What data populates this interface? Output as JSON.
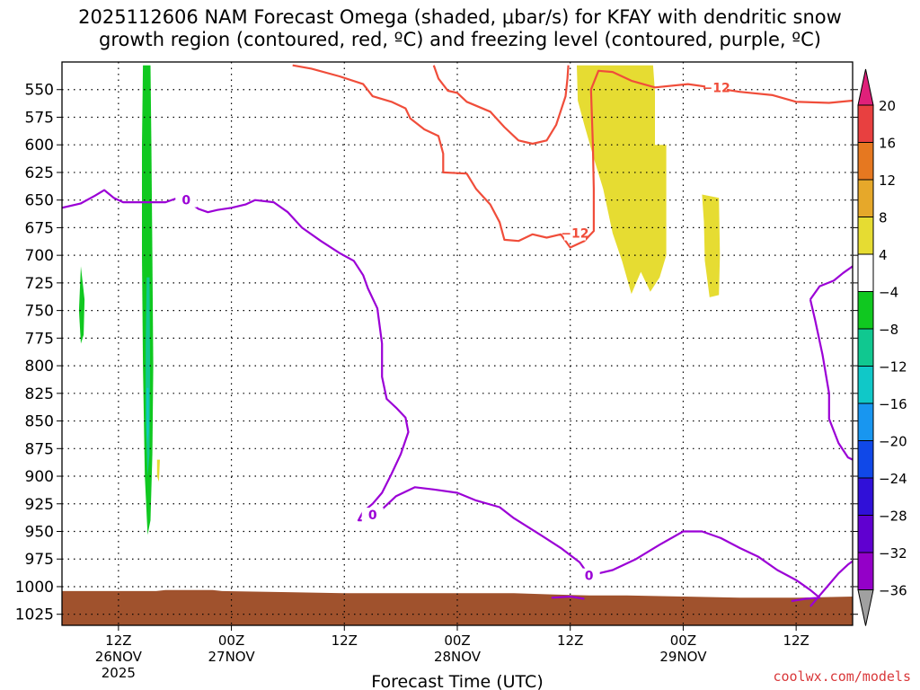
{
  "title_line1": "2025112606 NAM Forecast Omega (shaded, μbar/s) for KFAY with dendritic snow",
  "title_line2": "growth region (contoured, red, ºC) and freezing level (contoured, purple, ºC)",
  "credit": "coolwx.com/models",
  "chart_data": {
    "type": "heatmap",
    "xlabel": "Forecast Time (UTC)",
    "x_range_hours": [
      0,
      84
    ],
    "x_ticks": [
      {
        "hour": 6,
        "label": "12Z",
        "date": "26NOV",
        "year": "2025"
      },
      {
        "hour": 18,
        "label": "00Z",
        "date": "27NOV"
      },
      {
        "hour": 30,
        "label": "12Z"
      },
      {
        "hour": 42,
        "label": "00Z",
        "date": "28NOV"
      },
      {
        "hour": 54,
        "label": "12Z"
      },
      {
        "hour": 66,
        "label": "00Z",
        "date": "29NOV"
      },
      {
        "hour": 78,
        "label": "12Z"
      }
    ],
    "y_axis": "pressure (mb), inverted",
    "y_range": [
      1035,
      525
    ],
    "y_ticks": [
      550,
      575,
      600,
      625,
      650,
      675,
      700,
      725,
      750,
      775,
      800,
      825,
      850,
      875,
      900,
      925,
      950,
      975,
      1000,
      1025
    ],
    "grid": true,
    "colorbar": {
      "levels": [
        -36,
        -32,
        -28,
        -24,
        -20,
        -16,
        -12,
        -8,
        -4,
        4,
        8,
        12,
        16,
        20
      ],
      "colors": [
        "#a0a0a0",
        "#9400c8",
        "#6000d0",
        "#3010d8",
        "#1048e8",
        "#1896f0",
        "#10c8c8",
        "#10c890",
        "#10c820",
        "#ffffff",
        "#e6dc32",
        "#e6a82a",
        "#e67820",
        "#e84040",
        "#e0207a"
      ]
    },
    "omega_regions": [
      {
        "value_range": [
          -8,
          -4
        ],
        "color": "#10c820",
        "points": [
          [
            8.6,
            528
          ],
          [
            9.4,
            528
          ],
          [
            9.5,
            600
          ],
          [
            9.6,
            700
          ],
          [
            9.7,
            800
          ],
          [
            9.6,
            880
          ],
          [
            9.4,
            940
          ],
          [
            9.1,
            953
          ],
          [
            8.8,
            900
          ],
          [
            8.6,
            800
          ],
          [
            8.5,
            700
          ],
          [
            8.5,
            600
          ]
        ]
      },
      {
        "value_range": [
          -8,
          -4
        ],
        "color": "#10c820",
        "points": [
          [
            2.0,
            710
          ],
          [
            2.4,
            740
          ],
          [
            2.3,
            772
          ],
          [
            2.0,
            780
          ],
          [
            1.8,
            750
          ]
        ]
      },
      {
        "value_range": [
          -12,
          -8
        ],
        "color": "#10c890",
        "points": [
          [
            9.0,
            720
          ],
          [
            9.3,
            720
          ],
          [
            9.35,
            800
          ],
          [
            9.3,
            880
          ],
          [
            9.1,
            900
          ],
          [
            8.9,
            850
          ],
          [
            8.9,
            780
          ]
        ]
      },
      {
        "value_range": [
          -16,
          -12
        ],
        "color": "#10c8c8",
        "points": [
          [
            9.0,
            820
          ],
          [
            9.2,
            820
          ],
          [
            9.2,
            860
          ],
          [
            9.05,
            870
          ]
        ]
      },
      {
        "value_range": [
          4,
          8
        ],
        "color": "#e6dc32",
        "points": [
          [
            10.1,
            885
          ],
          [
            10.4,
            885
          ],
          [
            10.3,
            905
          ],
          [
            10.1,
            900
          ]
        ]
      },
      {
        "value_range": [
          4,
          8
        ],
        "color": "#e6dc32",
        "points": [
          [
            51.5,
            528
          ],
          [
            62.8,
            528
          ],
          [
            63.0,
            552
          ],
          [
            63.0,
            600
          ],
          [
            64.2,
            600
          ],
          [
            64.2,
            668
          ],
          [
            64.2,
            700
          ],
          [
            63.5,
            720
          ],
          [
            62.5,
            733
          ],
          [
            61.5,
            715
          ],
          [
            60.5,
            735
          ],
          [
            59.5,
            705
          ],
          [
            58.5,
            680
          ],
          [
            57.5,
            640
          ],
          [
            56.5,
            612
          ],
          [
            55.5,
            582
          ],
          [
            54.8,
            560
          ],
          [
            54.7,
            528
          ]
        ]
      },
      {
        "value_range": [
          4,
          8
        ],
        "color": "#e6dc32",
        "points": [
          [
            68.0,
            645
          ],
          [
            69.8,
            648
          ],
          [
            69.9,
            700
          ],
          [
            69.8,
            736
          ],
          [
            68.8,
            738
          ],
          [
            68.3,
            705
          ],
          [
            68.2,
            670
          ]
        ]
      }
    ],
    "terrain": {
      "color": "#a0522d",
      "top_mb": [
        [
          0,
          1004
        ],
        [
          10,
          1004
        ],
        [
          11,
          1003
        ],
        [
          16,
          1003
        ],
        [
          17,
          1004
        ],
        [
          24,
          1005
        ],
        [
          30,
          1006
        ],
        [
          36,
          1006
        ],
        [
          48,
          1006
        ],
        [
          52,
          1007
        ],
        [
          56,
          1008
        ],
        [
          60,
          1008
        ],
        [
          66,
          1009
        ],
        [
          72,
          1010
        ],
        [
          78,
          1010
        ],
        [
          84,
          1009
        ]
      ]
    },
    "contours": [
      {
        "name": "-12",
        "color": "#f04d3a",
        "label_at": [
          [
            69.5,
            548
          ],
          [
            54.5,
            680
          ]
        ],
        "points": [
          [
            24.5,
            528
          ],
          [
            26.5,
            531
          ],
          [
            29.5,
            538
          ],
          [
            32.0,
            545
          ],
          [
            33.0,
            556
          ],
          [
            35.0,
            561
          ],
          [
            36.5,
            567
          ],
          [
            37.0,
            576
          ],
          [
            38.5,
            586
          ],
          [
            40.0,
            592
          ],
          [
            40.5,
            608
          ],
          [
            40.5,
            625
          ],
          [
            43.0,
            626
          ],
          [
            44.0,
            640
          ],
          [
            45.5,
            654
          ],
          [
            46.5,
            670
          ],
          [
            47.0,
            686
          ],
          [
            48.5,
            687
          ],
          [
            50.0,
            681
          ],
          [
            51.5,
            684
          ],
          [
            53.0,
            681
          ],
          [
            54.0,
            693
          ],
          [
            55.5,
            687
          ],
          [
            56.5,
            678
          ],
          [
            56.5,
            640
          ],
          [
            56.4,
            600
          ],
          [
            56.2,
            550
          ],
          [
            57.0,
            533
          ],
          [
            58.5,
            534
          ],
          [
            60.5,
            542
          ],
          [
            63.0,
            548
          ],
          [
            66.5,
            545
          ],
          [
            69.0,
            548
          ],
          [
            72.0,
            552
          ],
          [
            75.5,
            555
          ],
          [
            78.0,
            561
          ],
          [
            81.5,
            562
          ],
          [
            84.0,
            560
          ]
        ]
      },
      {
        "name": "-12",
        "color": "#f04d3a",
        "points": [
          [
            39.5,
            528
          ],
          [
            40.0,
            540
          ],
          [
            41.0,
            551
          ],
          [
            42.0,
            553
          ],
          [
            43.0,
            561
          ],
          [
            45.5,
            570
          ],
          [
            47.0,
            584
          ],
          [
            48.5,
            596
          ],
          [
            50.0,
            599
          ],
          [
            51.5,
            596
          ],
          [
            52.5,
            582
          ],
          [
            53.5,
            556
          ],
          [
            53.7,
            540
          ],
          [
            53.8,
            528
          ]
        ]
      },
      {
        "name": "0",
        "color": "#9b00d6",
        "label_at": [
          [
            13.2,
            650
          ],
          [
            33.0,
            935
          ],
          [
            56.0,
            990
          ]
        ],
        "points": [
          [
            0,
            657
          ],
          [
            2.0,
            653
          ],
          [
            3.5,
            646
          ],
          [
            4.5,
            641
          ],
          [
            5.5,
            648
          ],
          [
            6.5,
            652
          ],
          [
            8.0,
            652
          ],
          [
            9.5,
            652
          ],
          [
            11.0,
            652
          ],
          [
            12.0,
            649
          ],
          [
            13.2,
            650
          ],
          [
            14.5,
            658
          ],
          [
            15.5,
            661
          ],
          [
            16.5,
            659
          ],
          [
            18.0,
            657
          ],
          [
            19.5,
            654
          ],
          [
            20.5,
            650
          ],
          [
            22.5,
            652
          ],
          [
            24.0,
            661
          ],
          [
            25.5,
            675
          ],
          [
            27.5,
            687
          ],
          [
            29.5,
            698
          ],
          [
            31.0,
            705
          ],
          [
            32.0,
            718
          ],
          [
            32.5,
            730
          ],
          [
            33.5,
            748
          ],
          [
            34.0,
            780
          ],
          [
            34.0,
            810
          ],
          [
            34.5,
            830
          ],
          [
            35.5,
            838
          ],
          [
            36.5,
            847
          ],
          [
            36.8,
            860
          ],
          [
            36.0,
            880
          ],
          [
            35.0,
            898
          ],
          [
            34.0,
            915
          ],
          [
            33.0,
            925
          ],
          [
            32.0,
            932
          ],
          [
            31.5,
            940
          ],
          [
            32.5,
            940
          ],
          [
            34.0,
            930
          ],
          [
            35.5,
            918
          ],
          [
            37.5,
            910
          ],
          [
            39.5,
            912
          ],
          [
            42.0,
            915
          ],
          [
            44.0,
            922
          ],
          [
            46.5,
            928
          ],
          [
            48.0,
            938
          ],
          [
            49.5,
            946
          ],
          [
            51.0,
            954
          ],
          [
            53.0,
            965
          ],
          [
            55.0,
            978
          ],
          [
            56.0,
            990
          ],
          [
            58.5,
            985
          ],
          [
            61.0,
            975
          ],
          [
            63.5,
            962
          ],
          [
            66.0,
            950
          ],
          [
            68.0,
            950
          ],
          [
            70.0,
            956
          ],
          [
            72.0,
            965
          ],
          [
            74.0,
            973
          ],
          [
            76.0,
            985
          ],
          [
            78.0,
            994
          ],
          [
            79.5,
            1003
          ],
          [
            80.5,
            1010
          ],
          [
            79.0,
            1011
          ],
          [
            77.5,
            1013
          ]
        ]
      },
      {
        "name": "0",
        "color": "#9b00d6",
        "points": [
          [
            79.5,
            740
          ],
          [
            80.5,
            728
          ],
          [
            82.0,
            723
          ],
          [
            83.0,
            716
          ],
          [
            84.0,
            710
          ]
        ]
      },
      {
        "name": "0",
        "color": "#9b00d6",
        "points": [
          [
            79.5,
            740
          ],
          [
            80.0,
            758
          ],
          [
            80.8,
            790
          ],
          [
            81.5,
            825
          ],
          [
            81.5,
            848
          ],
          [
            82.5,
            870
          ],
          [
            83.5,
            883
          ],
          [
            84.0,
            885
          ]
        ]
      },
      {
        "name": "0",
        "color": "#9b00d6",
        "points": [
          [
            79.5,
            1018
          ],
          [
            80.5,
            1008
          ],
          [
            81.5,
            998
          ],
          [
            82.5,
            988
          ],
          [
            83.5,
            980
          ],
          [
            84.0,
            977
          ]
        ]
      },
      {
        "name": "0",
        "color": "#9b00d6",
        "points": [
          [
            52.0,
            1010
          ],
          [
            54.0,
            1009
          ],
          [
            55.5,
            1011
          ]
        ]
      }
    ]
  }
}
